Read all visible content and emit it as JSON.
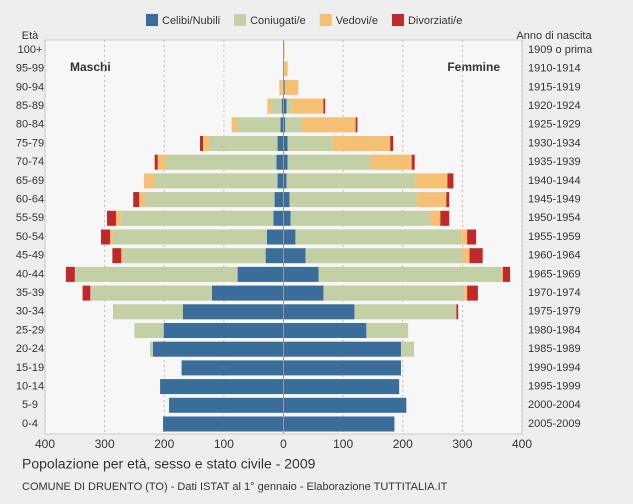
{
  "chart_data": {
    "type": "pyramid",
    "title": "Popolazione per età, sesso e stato civile - 2009",
    "subtitle": "COMUNE DI DRUENTO (TO) - Dati ISTAT al 1° gennaio - Elaborazione TUTTITALIA.IT",
    "y_label": "Età",
    "y2_label": "Anno di nascita",
    "left_label": "Maschi",
    "right_label": "Femmine",
    "categories": [
      "100+",
      "95-99",
      "90-94",
      "85-89",
      "80-84",
      "75-79",
      "70-74",
      "65-69",
      "60-64",
      "55-59",
      "50-54",
      "45-49",
      "40-44",
      "35-39",
      "30-34",
      "25-29",
      "20-24",
      "15-19",
      "10-14",
      "5-9",
      "0-4"
    ],
    "birth_years": [
      "1909 o prima",
      "1910-1914",
      "1915-1919",
      "1920-1924",
      "1925-1929",
      "1930-1934",
      "1935-1939",
      "1940-1944",
      "1945-1949",
      "1950-1954",
      "1955-1959",
      "1960-1964",
      "1965-1969",
      "1970-1974",
      "1975-1979",
      "1980-1984",
      "1985-1989",
      "1990-1994",
      "1995-1999",
      "2000-2004",
      "2005-2009"
    ],
    "xlim": [
      -400,
      400
    ],
    "xticks": [
      {
        "value": -400,
        "label": "400"
      },
      {
        "value": -300,
        "label": "300"
      },
      {
        "value": -200,
        "label": "200"
      },
      {
        "value": -100,
        "label": "100"
      },
      0,
      100,
      200,
      300,
      400
    ],
    "grid": true,
    "series": [
      {
        "name": "Celibi/Nubili",
        "color": "#3a6d99",
        "male": [
          0,
          0,
          0,
          3,
          5,
          10,
          12,
          10,
          15,
          17,
          28,
          30,
          77,
          120,
          169,
          201,
          219,
          171,
          207,
          192,
          202
        ],
        "female": [
          0,
          0,
          2,
          5,
          3,
          7,
          7,
          5,
          10,
          12,
          20,
          37,
          59,
          67,
          119,
          139,
          197,
          197,
          194,
          206,
          186
        ]
      },
      {
        "name": "Coniugati/e",
        "color": "#c3cfa4",
        "male": [
          0,
          0,
          2,
          17,
          72,
          115,
          186,
          207,
          217,
          256,
          258,
          239,
          273,
          204,
          117,
          49,
          5,
          0,
          0,
          0,
          0
        ],
        "female": [
          0,
          0,
          0,
          8,
          28,
          75,
          139,
          216,
          214,
          234,
          278,
          263,
          306,
          236,
          171,
          70,
          22,
          0,
          0,
          0,
          0
        ]
      },
      {
        "name": "Vedovi/e",
        "color": "#f5c073",
        "male": [
          0,
          1,
          5,
          7,
          10,
          10,
          13,
          17,
          10,
          8,
          5,
          3,
          0,
          0,
          0,
          0,
          0,
          0,
          0,
          0,
          0
        ],
        "female": [
          2,
          7,
          23,
          54,
          90,
          97,
          69,
          54,
          49,
          17,
          10,
          12,
          3,
          5,
          0,
          0,
          0,
          0,
          0,
          0,
          0
        ]
      },
      {
        "name": "Divorziati/e",
        "color": "#c0282a",
        "male": [
          0,
          0,
          0,
          0,
          0,
          5,
          5,
          0,
          10,
          15,
          15,
          15,
          15,
          13,
          0,
          0,
          0,
          0,
          0,
          0,
          0
        ],
        "female": [
          0,
          0,
          0,
          3,
          3,
          5,
          5,
          10,
          5,
          15,
          15,
          22,
          12,
          18,
          3,
          0,
          0,
          0,
          0,
          0,
          0
        ]
      }
    ]
  }
}
